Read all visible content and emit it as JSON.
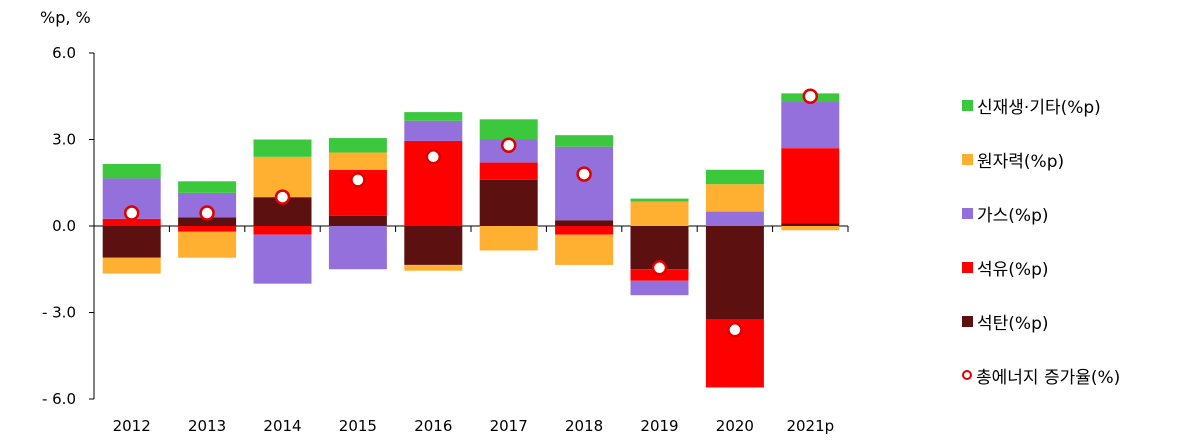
{
  "chart_data": {
    "type": "bar",
    "stacked": true,
    "unit_label": "%p, %",
    "categories": [
      "2012",
      "2013",
      "2014",
      "2015",
      "2016",
      "2017",
      "2018",
      "2019",
      "2020",
      "2021p"
    ],
    "ylim": [
      -6.0,
      6.0
    ],
    "yticks": [
      "6.0",
      "3.0",
      "0.0",
      "- 3.0",
      "- 6.0"
    ],
    "ytick_values": [
      6,
      3,
      0,
      -3,
      -6
    ],
    "series": [
      {
        "name": "석탄(%p)",
        "color": "#5c1010",
        "values": [
          -1.1,
          0.3,
          1.0,
          0.35,
          -1.35,
          1.6,
          0.2,
          -1.5,
          -3.25,
          0.1
        ]
      },
      {
        "name": "석유(%p)",
        "color": "#ff0000",
        "values": [
          0.25,
          -0.2,
          -0.3,
          1.6,
          2.95,
          0.6,
          -0.3,
          -0.4,
          -2.35,
          2.6
        ]
      },
      {
        "name": "가스(%p)",
        "color": "#9370db",
        "values": [
          1.4,
          0.85,
          -1.7,
          -1.5,
          0.7,
          0.8,
          2.55,
          -0.5,
          0.5,
          1.6
        ]
      },
      {
        "name": "원자력(%p)",
        "color": "#ffb030",
        "values": [
          -0.55,
          -0.9,
          1.4,
          0.6,
          -0.2,
          -0.85,
          -1.05,
          0.85,
          0.95,
          -0.15
        ]
      },
      {
        "name": "신재생·기타(%p)",
        "color": "#3cc83c",
        "values": [
          0.5,
          0.4,
          0.6,
          0.5,
          0.3,
          0.7,
          0.4,
          0.1,
          0.5,
          0.3
        ]
      }
    ],
    "line_series": {
      "name": "총에너지 증가율(%)",
      "color": "#e00000",
      "values": [
        0.45,
        0.45,
        1.0,
        1.6,
        2.4,
        2.8,
        1.8,
        -1.45,
        -3.6,
        4.5
      ]
    },
    "legend_order": [
      "신재생·기타(%p)",
      "원자력(%p)",
      "가스(%p)",
      "석유(%p)",
      "석탄(%p)",
      "총에너지 증가율(%)"
    ],
    "legend_position": "right"
  }
}
